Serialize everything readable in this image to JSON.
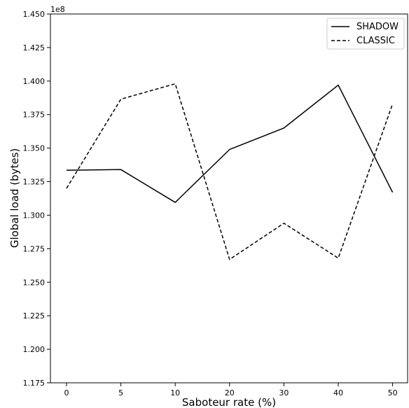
{
  "chart_data": {
    "type": "line",
    "title": "",
    "xlabel": "Saboteur rate (%)",
    "ylabel": "Global load (bytes)",
    "y_offset_label": "1e8",
    "categories": [
      "0",
      "5",
      "10",
      "20",
      "30",
      "40",
      "50"
    ],
    "ylim": [
      1.175,
      1.45
    ],
    "y_ticks": [
      "1.175",
      "1.200",
      "1.225",
      "1.250",
      "1.275",
      "1.300",
      "1.325",
      "1.350",
      "1.375",
      "1.400",
      "1.425",
      "1.450"
    ],
    "series": [
      {
        "name": "SHADOW",
        "style": "solid",
        "color": "#000000",
        "values": [
          1.3335,
          1.334,
          1.3095,
          1.349,
          1.365,
          1.397,
          1.317
        ]
      },
      {
        "name": "CLASSIC",
        "style": "dashed",
        "color": "#000000",
        "values": [
          1.32,
          1.3865,
          1.398,
          1.267,
          1.294,
          1.268,
          1.383
        ]
      }
    ],
    "grid": false,
    "legend_position": "top-right"
  }
}
